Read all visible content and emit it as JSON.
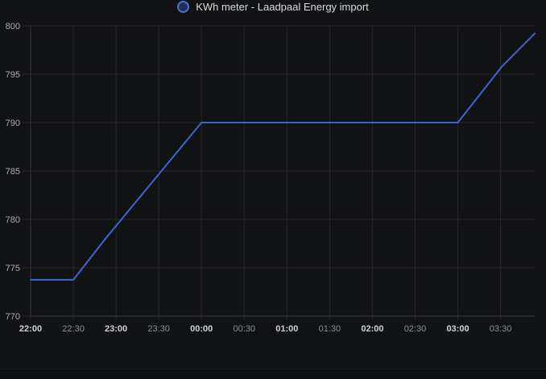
{
  "legend": {
    "position": "top-center",
    "icon": "series-color-circle",
    "ring_color": "#4f6ed8",
    "fill_color": "#202e5a"
  },
  "chart_data": {
    "type": "line",
    "title": "",
    "grid": true,
    "markers": false,
    "x_axis": {
      "unit": "time HH:mm",
      "range_minutes_from_2200": [
        0,
        354
      ],
      "ticks": [
        {
          "label": "22:00",
          "minutes": 0,
          "bold": true
        },
        {
          "label": "22:30",
          "minutes": 30,
          "bold": false
        },
        {
          "label": "23:00",
          "minutes": 60,
          "bold": true
        },
        {
          "label": "23:30",
          "minutes": 90,
          "bold": false
        },
        {
          "label": "00:00",
          "minutes": 120,
          "bold": true
        },
        {
          "label": "00:30",
          "minutes": 150,
          "bold": false
        },
        {
          "label": "01:00",
          "minutes": 180,
          "bold": true
        },
        {
          "label": "01:30",
          "minutes": 210,
          "bold": false
        },
        {
          "label": "02:00",
          "minutes": 240,
          "bold": true
        },
        {
          "label": "02:30",
          "minutes": 270,
          "bold": false
        },
        {
          "label": "03:00",
          "minutes": 300,
          "bold": true
        },
        {
          "label": "03:30",
          "minutes": 330,
          "bold": false
        }
      ]
    },
    "y_axis": {
      "ylim": [
        770,
        800
      ],
      "ticks": [
        800,
        795,
        790,
        785,
        780,
        775,
        770
      ]
    },
    "series": [
      {
        "name": "KWh meter - Laadpaal Energy import",
        "color": "#3e63d2",
        "points_minutes_value": [
          [
            0,
            773.75
          ],
          [
            30,
            773.75
          ],
          [
            52,
            777.9
          ],
          [
            120,
            790
          ],
          [
            300,
            790
          ],
          [
            331,
            795.8
          ],
          [
            354,
            799.2
          ]
        ],
        "points_time_value": [
          [
            "22:00",
            773.75
          ],
          [
            "22:30",
            773.75
          ],
          [
            "22:52",
            777.9
          ],
          [
            "00:00",
            790.0
          ],
          [
            "03:00",
            790.0
          ],
          [
            "03:31",
            795.8
          ],
          [
            "03:54",
            799.2
          ]
        ]
      }
    ],
    "colors": {
      "background": "#111214",
      "grid": "#26272b",
      "axis": "#33353a",
      "tick_label_primary": "#d0d1d3",
      "tick_label_secondary": "#8e9095",
      "y_tick_label": "#adaeb0",
      "line": "#3e63d2"
    }
  }
}
